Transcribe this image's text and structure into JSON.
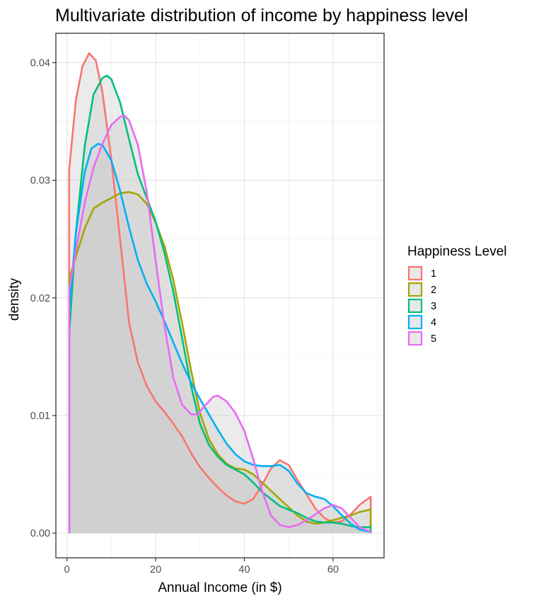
{
  "chart_data": {
    "type": "area",
    "title": "Multivariate distribution of income by happiness level",
    "xlabel": "Annual Income (in $)",
    "ylabel": "density",
    "xlim": [
      -2.5,
      71.5
    ],
    "ylim": [
      -0.0021,
      0.0425
    ],
    "x_ticks": [
      0,
      20,
      40,
      60
    ],
    "x_tick_labels": [
      "0",
      "20",
      "40",
      "60"
    ],
    "y_ticks": [
      0.0,
      0.01,
      0.02,
      0.03,
      0.04
    ],
    "y_tick_labels": [
      "0.00",
      "0.01",
      "0.02",
      "0.03",
      "0.04"
    ],
    "grid": true,
    "legend": {
      "title": "Happiness Level",
      "placement": "right"
    },
    "fill_color": "#cccccc",
    "fill_opacity": 0.4,
    "series": [
      {
        "name": "1",
        "color": "#F8766D",
        "x": [
          0.5,
          2,
          3.5,
          5,
          6.5,
          8,
          10,
          12,
          14,
          16,
          18,
          20,
          22,
          24,
          26,
          28,
          30,
          32,
          34,
          36,
          38,
          40,
          42,
          44,
          46,
          48,
          50,
          52,
          54,
          56,
          58,
          60,
          62,
          64,
          66,
          68.5
        ],
        "y": [
          0.0309,
          0.0368,
          0.0397,
          0.0408,
          0.0402,
          0.0375,
          0.0318,
          0.0249,
          0.0179,
          0.0145,
          0.0125,
          0.0112,
          0.0103,
          0.0093,
          0.0082,
          0.0068,
          0.0056,
          0.0047,
          0.0039,
          0.0032,
          0.0027,
          0.0025,
          0.0029,
          0.0041,
          0.0055,
          0.0062,
          0.0058,
          0.0045,
          0.0033,
          0.0021,
          0.0013,
          0.0009,
          0.001,
          0.0016,
          0.0024,
          0.0031
        ]
      },
      {
        "name": "2",
        "color": "#A3A500",
        "x": [
          0.5,
          2,
          4,
          6,
          8,
          10,
          12,
          14,
          16,
          18,
          20,
          22,
          24,
          26,
          28,
          30,
          32,
          34,
          36,
          38,
          40,
          42,
          44,
          46,
          48,
          50,
          52,
          54,
          56,
          58,
          60,
          62,
          64,
          66,
          68.5
        ],
        "y": [
          0.0216,
          0.0235,
          0.0259,
          0.0276,
          0.0281,
          0.0285,
          0.0289,
          0.029,
          0.0288,
          0.028,
          0.0264,
          0.0244,
          0.0215,
          0.0178,
          0.0138,
          0.0102,
          0.008,
          0.0067,
          0.0059,
          0.0055,
          0.0054,
          0.005,
          0.0043,
          0.0036,
          0.0029,
          0.0022,
          0.0015,
          0.001,
          0.0008,
          0.0009,
          0.0011,
          0.0013,
          0.0015,
          0.0018,
          0.002
        ]
      },
      {
        "name": "3",
        "color": "#00BF7D",
        "x": [
          0.5,
          2,
          4,
          6,
          8,
          9,
          10,
          12,
          14,
          16,
          18,
          20,
          22,
          24,
          26,
          28,
          30,
          32,
          34,
          36,
          38,
          40,
          42,
          44,
          46,
          48,
          50,
          52,
          54,
          56,
          58,
          60,
          62,
          64,
          66,
          68.5
        ],
        "y": [
          0.0169,
          0.0255,
          0.0329,
          0.0373,
          0.0387,
          0.0389,
          0.0386,
          0.0366,
          0.0335,
          0.0305,
          0.0285,
          0.0265,
          0.0238,
          0.0205,
          0.0165,
          0.0125,
          0.0093,
          0.0075,
          0.0065,
          0.0058,
          0.0054,
          0.005,
          0.0043,
          0.0035,
          0.0029,
          0.0023,
          0.002,
          0.0017,
          0.0013,
          0.001,
          0.0009,
          0.0009,
          0.0008,
          0.0006,
          0.0005,
          0.0005
        ]
      },
      {
        "name": "4",
        "color": "#00B0F6",
        "x": [
          0.5,
          2,
          4,
          5.5,
          7,
          8,
          10,
          12,
          14,
          16,
          18,
          20,
          22,
          24,
          26,
          28,
          30,
          32,
          34,
          36,
          38,
          40,
          42,
          44,
          46,
          48,
          50,
          52,
          54,
          56,
          58,
          60,
          62,
          64,
          66,
          68.5
        ],
        "y": [
          0.019,
          0.0255,
          0.0307,
          0.0327,
          0.0331,
          0.033,
          0.0317,
          0.0291,
          0.026,
          0.0232,
          0.0212,
          0.0197,
          0.018,
          0.0162,
          0.0144,
          0.0128,
          0.0114,
          0.0101,
          0.0088,
          0.0076,
          0.0067,
          0.0061,
          0.0058,
          0.0057,
          0.0057,
          0.0058,
          0.0053,
          0.0042,
          0.0034,
          0.0031,
          0.0029,
          0.0023,
          0.0015,
          0.0008,
          0.0003,
          0.0001
        ]
      },
      {
        "name": "5",
        "color": "#E76BF3",
        "x": [
          0.5,
          2,
          4,
          6,
          8,
          10,
          12,
          13,
          14,
          16,
          18,
          20,
          22,
          24,
          26,
          28,
          29.5,
          31,
          33,
          34,
          36,
          38,
          40,
          42,
          44,
          46,
          48,
          50,
          52,
          54,
          56,
          58,
          60,
          62,
          64,
          66,
          68.5
        ],
        "y": [
          0.0207,
          0.024,
          0.0281,
          0.0311,
          0.0331,
          0.0347,
          0.0354,
          0.0355,
          0.0351,
          0.033,
          0.029,
          0.0232,
          0.0176,
          0.0132,
          0.0109,
          0.0101,
          0.0101,
          0.0108,
          0.0116,
          0.0117,
          0.0112,
          0.0102,
          0.0087,
          0.0063,
          0.0036,
          0.0015,
          0.0007,
          0.0005,
          0.0007,
          0.0011,
          0.0016,
          0.0021,
          0.0024,
          0.0021,
          0.0013,
          0.0005,
          0.0001
        ]
      }
    ]
  }
}
